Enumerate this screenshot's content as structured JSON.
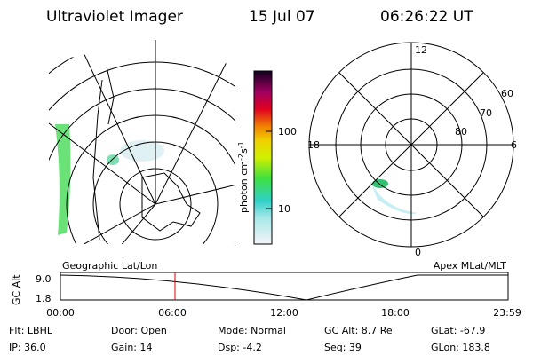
{
  "header": {
    "title": "Ultraviolet Imager",
    "date": "15 Jul 07",
    "time": "06:26:22 UT"
  },
  "colorbar": {
    "label": {
      "base": "photon cm",
      "exp1": "-2",
      "unit2": "s",
      "exp2": "-1"
    },
    "ticks": [
      "100",
      "10"
    ]
  },
  "left_panel": {
    "label": "Geographic Lat/Lon"
  },
  "right_panel": {
    "label": "Apex MLat/MLT",
    "mlt_labels": [
      "12",
      "18",
      "6",
      "0"
    ],
    "lat_labels": [
      "60",
      "70",
      "80"
    ]
  },
  "altitude_plot": {
    "ylabel": "GC Alt",
    "yticks": [
      "9.0",
      "1.8"
    ],
    "xticks": [
      "00:00",
      "06:00",
      "12:00",
      "18:00",
      "23:59"
    ]
  },
  "footer": {
    "rows": [
      [
        "Flt: LBHL",
        "Door: Open",
        "Mode: Normal",
        "GC Alt: 8.7 Re",
        "GLat: -67.9"
      ],
      [
        "IP: 36.0",
        "Gain: 14",
        "Dsp:   -4.2",
        "Seq: 39",
        "GLon: 183.8"
      ]
    ]
  }
}
